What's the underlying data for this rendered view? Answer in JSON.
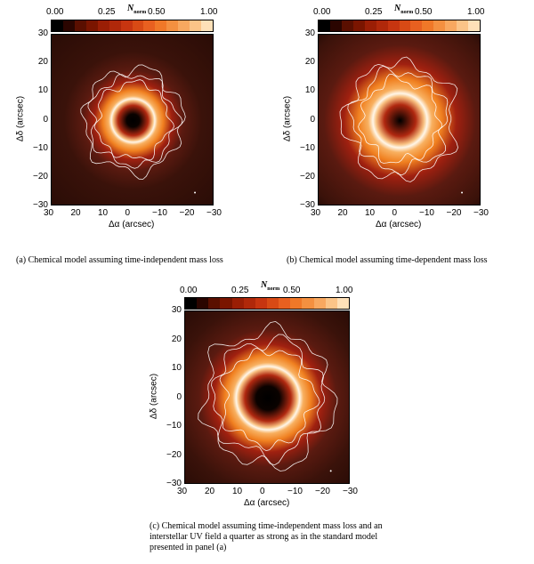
{
  "colorbar": {
    "label_main": "N",
    "label_sub": "norm",
    "ticks": [
      "0.00",
      "0.25",
      "0.50",
      "1.00"
    ]
  },
  "axes": {
    "xlabel": "Δα (arcsec)",
    "ylabel": "Δδ (arcsec)",
    "xticks": [
      "30",
      "20",
      "10",
      "0",
      "−10",
      "−20",
      "−30"
    ],
    "yticks": [
      "30",
      "20",
      "10",
      "0",
      "−10",
      "−20",
      "−30"
    ]
  },
  "panels": [
    {
      "caption": "(a) Chemical model assuming time-independent mass loss",
      "ring_radius": 8,
      "ring_width": 3.5
    },
    {
      "caption": "(b) Chemical model assuming time-dependent mass loss",
      "ring_radius": 10,
      "ring_width": 6
    },
    {
      "caption": "(c) Chemical model assuming time-independent mass loss and an interstellar UV field a quarter as strong as in the standard model presented in panel (a)",
      "ring_radius": 11.5,
      "ring_width": 4.5
    }
  ],
  "colors": {
    "ring_core": "#fff6e8",
    "ring_mid": "#f08020",
    "ring_outer": "#a02010",
    "background": "#1a0500"
  }
}
